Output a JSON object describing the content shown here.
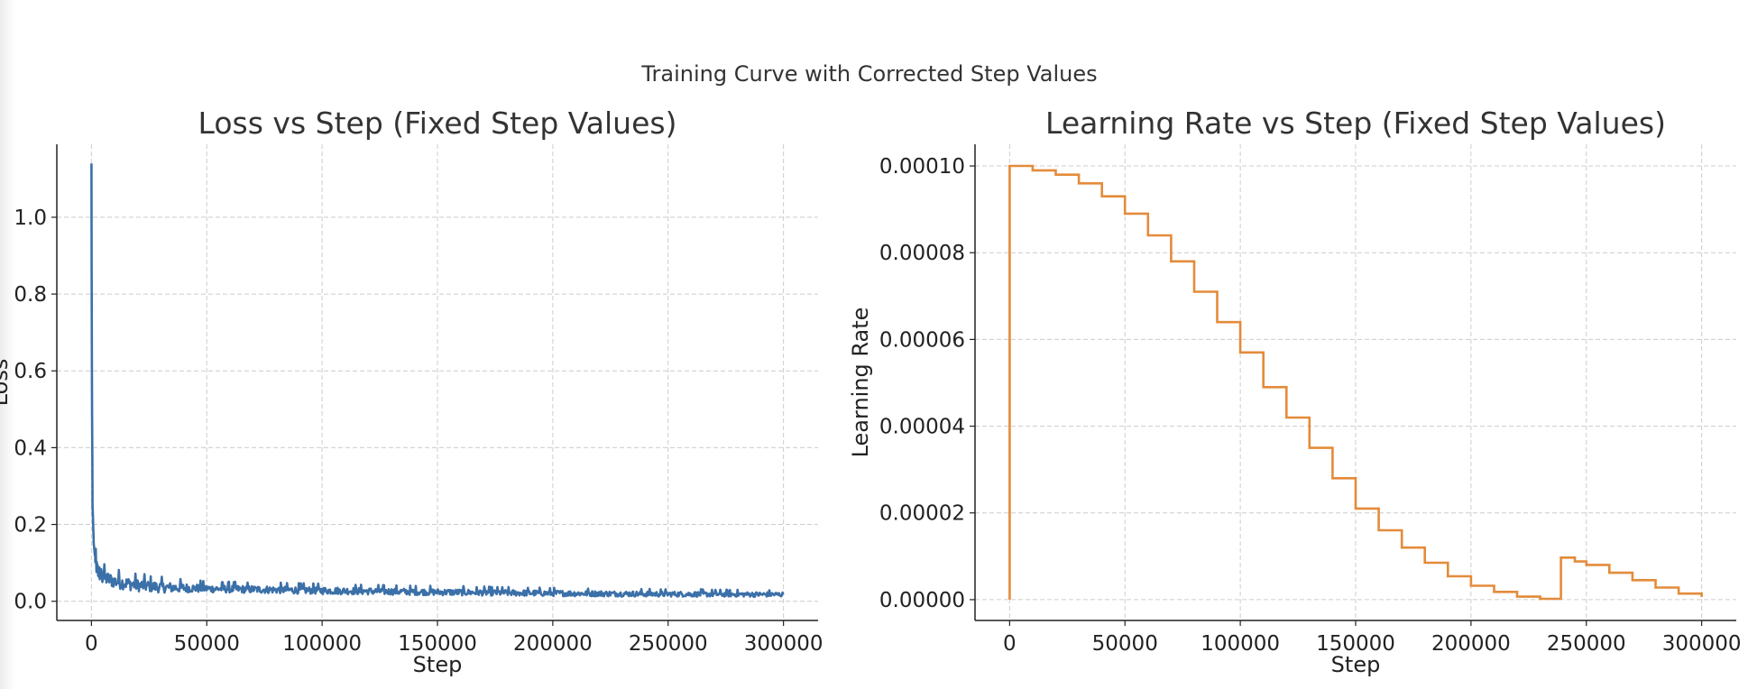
{
  "figure": {
    "suptitle": "Training Curve with Corrected Step Values"
  },
  "chart_data": [
    {
      "type": "line",
      "title": "Loss vs Step (Fixed Step Values)",
      "xlabel": "Step",
      "ylabel": "Loss",
      "xlim": [
        -15000,
        315000
      ],
      "ylim": [
        -0.05,
        1.19
      ],
      "xticks": [
        0,
        50000,
        100000,
        150000,
        200000,
        250000,
        300000
      ],
      "xtick_labels": [
        "0",
        "50000",
        "100000",
        "150000",
        "200000",
        "250000",
        "300000"
      ],
      "yticks": [
        0.0,
        0.2,
        0.4,
        0.6,
        0.8,
        1.0
      ],
      "ytick_labels": [
        "0.0",
        "0.2",
        "0.4",
        "0.6",
        "0.8",
        "1.0"
      ],
      "grid": true,
      "color": "#3b70a8",
      "series": [
        {
          "x": [
            0,
            200,
            500,
            1000,
            2000,
            3000,
            5000,
            10000,
            20000,
            30000,
            50000,
            70000,
            100000,
            150000,
            200000,
            250000,
            300000
          ],
          "y": [
            1.14,
            0.6,
            0.25,
            0.15,
            0.09,
            0.075,
            0.06,
            0.05,
            0.04,
            0.035,
            0.032,
            0.03,
            0.027,
            0.023,
            0.02,
            0.018,
            0.017
          ]
        }
      ],
      "noise_amplitude": [
        {
          "x": 0,
          "amp": 0.04
        },
        {
          "x": 50000,
          "amp": 0.02
        },
        {
          "x": 300000,
          "amp": 0.012
        }
      ]
    },
    {
      "type": "line",
      "title": "Learning Rate vs Step (Fixed Step Values)",
      "xlabel": "Step",
      "ylabel": "Learning Rate",
      "xlim": [
        -15000,
        315000
      ],
      "ylim": [
        -4.8e-06,
        0.000105
      ],
      "xticks": [
        0,
        50000,
        100000,
        150000,
        200000,
        250000,
        300000
      ],
      "xtick_labels": [
        "0",
        "50000",
        "100000",
        "150000",
        "200000",
        "250000",
        "300000"
      ],
      "yticks": [
        0.0,
        2e-05,
        4e-05,
        6e-05,
        8e-05,
        0.0001
      ],
      "ytick_labels": [
        "0.00000",
        "0.00002",
        "0.00004",
        "0.00006",
        "0.00008",
        "0.00010"
      ],
      "grid": true,
      "color": "#e48b3a",
      "series": [
        {
          "x": [
            0,
            0,
            10000,
            10000,
            20000,
            30000,
            40000,
            50000,
            60000,
            70000,
            80000,
            90000,
            100000,
            110000,
            120000,
            130000,
            140000,
            150000,
            160000,
            170000,
            180000,
            190000,
            200000,
            210000,
            220000,
            230000,
            239000,
            239000,
            245000,
            250000,
            260000,
            270000,
            280000,
            290000,
            300000
          ],
          "y": [
            0.0,
            0.0001,
            0.0001,
            9.9e-05,
            9.8e-05,
            9.6e-05,
            9.3e-05,
            8.9e-05,
            8.4e-05,
            7.8e-05,
            7.1e-05,
            6.4e-05,
            5.7e-05,
            4.9e-05,
            4.2e-05,
            3.5e-05,
            2.8e-05,
            2.1e-05,
            1.6e-05,
            1.2e-05,
            8.5e-06,
            5.4e-06,
            3.2e-06,
            1.8e-06,
            7e-07,
            2e-07,
            0.0,
            9.7e-06,
            8.8e-06,
            8e-06,
            6.2e-06,
            4.5e-06,
            2.8e-06,
            1.4e-06,
            6e-07
          ]
        }
      ]
    }
  ]
}
